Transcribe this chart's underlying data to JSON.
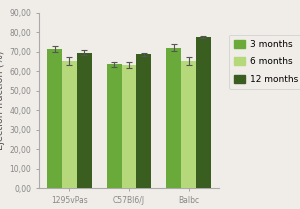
{
  "categories": [
    "1295vPas",
    "C57Bl6/J",
    "Balbc"
  ],
  "series": {
    "3 months": {
      "values": [
        71.5,
        63.5,
        72.0
      ],
      "errors": [
        1.5,
        1.2,
        1.8
      ],
      "color": "#6aaa3a"
    },
    "6 months": {
      "values": [
        65.0,
        63.0,
        65.0
      ],
      "errors": [
        2.0,
        1.5,
        2.0
      ],
      "color": "#b5d87a"
    },
    "12 months": {
      "values": [
        69.5,
        68.5,
        77.5
      ],
      "errors": [
        1.5,
        0.7,
        0.7
      ],
      "color": "#3a5e1f"
    }
  },
  "series_order": [
    "3 months",
    "6 months",
    "12 months"
  ],
  "ylabel": "Ejection fraction (%)",
  "ylim": [
    0,
    90
  ],
  "yticks": [
    0,
    10,
    20,
    30,
    40,
    50,
    60,
    70,
    80,
    90
  ],
  "ytick_labels": [
    "0,00",
    "10,00",
    "20,00",
    "30,00",
    "40,00",
    "50,00",
    "60,00",
    "70,00",
    "80,00",
    "90,00"
  ],
  "bg_color": "#f0ede8",
  "plot_bg_color": "#f0ede8",
  "bar_width": 0.25,
  "legend_fontsize": 6.5,
  "axis_fontsize": 5.5,
  "ylabel_fontsize": 7
}
